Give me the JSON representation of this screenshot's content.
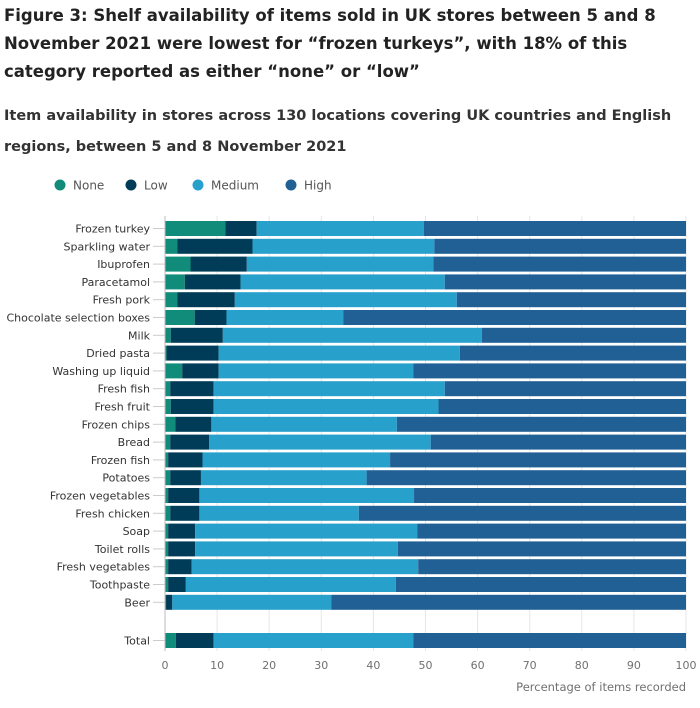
{
  "chart_data": {
    "type": "bar",
    "orientation": "horizontal",
    "stacked": true,
    "title": "Figure 3: Shelf availability of items sold in UK stores between 5 and 8 November 2021 were lowest for “frozen turkeys”, with 18% of this category reported as either “none” or “low”",
    "subtitle": "Item availability in stores across 130 locations covering UK countries and English regions, between 5 and 8 November 2021",
    "xlabel": "Percentage of items recorded",
    "ylabel": "",
    "xlim": [
      0,
      100
    ],
    "xticks": [
      0,
      10,
      20,
      30,
      40,
      50,
      60,
      70,
      80,
      90,
      100
    ],
    "grid": true,
    "legend_position": "top-left",
    "categories": [
      "Frozen turkey",
      "Sparkling water",
      "Ibuprofen",
      "Paracetamol",
      "Fresh pork",
      "Chocolate selection boxes",
      "Milk",
      "Dried pasta",
      "Washing up liquid",
      "Fresh fish",
      "Fresh fruit",
      "Frozen chips",
      "Bread",
      "Frozen fish",
      "Potatoes",
      "Frozen vegetables",
      "Fresh chicken",
      "Soap",
      "Toilet rolls",
      "Fresh vegetables",
      "Toothpaste",
      "Beer",
      "Total"
    ],
    "series": [
      {
        "name": "None",
        "color": "#118c7b",
        "values": [
          11.6,
          2.4,
          4.9,
          3.8,
          2.4,
          5.7,
          1.1,
          0.3,
          3.3,
          1.0,
          1.1,
          2.0,
          1.0,
          0.6,
          1.0,
          0.6,
          1.0,
          0.6,
          0.6,
          0.6,
          0.6,
          0.2,
          2.1
        ]
      },
      {
        "name": "Low",
        "color": "#003c57",
        "values": [
          6.0,
          14.4,
          10.8,
          10.7,
          11.0,
          6.1,
          10.0,
          10.0,
          7.0,
          8.3,
          8.2,
          6.9,
          7.5,
          6.6,
          5.9,
          6.0,
          5.6,
          5.2,
          5.2,
          4.5,
          3.4,
          1.2,
          7.2
        ]
      },
      {
        "name": "Medium",
        "color": "#27a0cc",
        "values": [
          32.1,
          34.9,
          35.8,
          39.2,
          42.6,
          22.4,
          49.7,
          46.3,
          37.4,
          44.4,
          43.2,
          35.6,
          42.5,
          36.0,
          31.8,
          41.2,
          30.6,
          42.6,
          38.9,
          43.5,
          40.3,
          30.5,
          38.4
        ]
      },
      {
        "name": "High",
        "color": "#206095",
        "values": [
          50.3,
          48.3,
          48.5,
          46.3,
          44.0,
          65.8,
          39.2,
          43.4,
          52.3,
          46.3,
          47.5,
          55.5,
          49.0,
          56.8,
          61.3,
          52.2,
          62.8,
          51.6,
          55.3,
          51.4,
          55.7,
          68.1,
          52.3
        ]
      }
    ]
  }
}
